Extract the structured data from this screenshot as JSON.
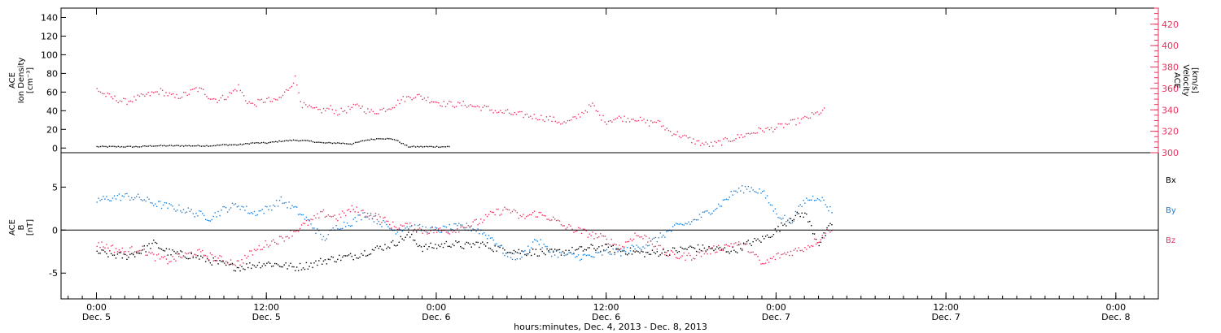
{
  "colors": {
    "black": "#000000",
    "pink": "#e8335f",
    "blue": "#1b7fd6"
  },
  "chart_data": [
    {
      "type": "scatter",
      "panel": "top",
      "ylabel_left": [
        "ACE",
        "Ion Density",
        "[cm⁻³]"
      ],
      "ylabel_right": [
        "ACE",
        "Velocity",
        "[km/s]"
      ],
      "ylim_left": [
        -5,
        150
      ],
      "yticks_left": [
        0,
        20,
        40,
        60,
        80,
        100,
        120,
        140
      ],
      "ylim_right": [
        300,
        435
      ],
      "yticks_right": [
        300,
        320,
        340,
        360,
        380,
        400,
        420
      ],
      "series": [
        {
          "color": "black",
          "axis": "left",
          "t": [
            0,
            4,
            8,
            12,
            16,
            20,
            24,
            28,
            32,
            36,
            40,
            44,
            48,
            52,
            56,
            60,
            64,
            68,
            72,
            76,
            80,
            84,
            88,
            92,
            96,
            100
          ],
          "v": [
            2,
            2,
            2,
            2,
            3,
            3,
            3,
            3,
            3,
            4,
            4,
            6,
            6,
            8,
            9,
            8,
            6,
            6,
            5,
            9,
            11,
            10,
            2,
            2,
            2,
            2
          ]
        },
        {
          "color": "pink",
          "axis": "right",
          "t": [
            0,
            2,
            4,
            6,
            8,
            10,
            12,
            14,
            16,
            18,
            20,
            22,
            24,
            26,
            28,
            30,
            32,
            34,
            36,
            38,
            40,
            42,
            44,
            46,
            48,
            50,
            52,
            54,
            56,
            58,
            60,
            62,
            64,
            66,
            68,
            70,
            72,
            74,
            76,
            78,
            80,
            82,
            84,
            86,
            88,
            90,
            92,
            94,
            96,
            98,
            100,
            102,
            104,
            106,
            108,
            110,
            112,
            114,
            116,
            118,
            120,
            122,
            124,
            126,
            128,
            130,
            132,
            134,
            136,
            138,
            140,
            142,
            144,
            146,
            148,
            150,
            152,
            154,
            156,
            158,
            160,
            162,
            164,
            166,
            168,
            170,
            172,
            174,
            176,
            178,
            180,
            182,
            184,
            186,
            188,
            190,
            192,
            194,
            196,
            198,
            200,
            202,
            204,
            206
          ],
          "v": [
            360,
            355,
            352,
            350,
            348,
            350,
            352,
            354,
            356,
            358,
            355,
            352,
            354,
            356,
            360,
            358,
            352,
            350,
            352,
            356,
            362,
            350,
            345,
            348,
            350,
            348,
            352,
            360,
            370,
            345,
            342,
            340,
            340,
            342,
            338,
            340,
            342,
            345,
            340,
            338,
            340,
            342,
            345,
            350,
            352,
            354,
            352,
            350,
            348,
            346,
            346,
            345,
            346,
            344,
            343,
            342,
            340,
            338,
            338,
            336,
            336,
            335,
            334,
            333,
            332,
            330,
            328,
            330,
            335,
            340,
            345,
            335,
            330,
            332,
            333,
            332,
            333,
            330,
            328,
            330,
            325,
            320,
            318,
            315,
            312,
            310,
            308,
            308,
            310,
            312,
            314,
            316,
            318,
            320,
            322,
            322,
            324,
            326,
            328,
            330,
            332,
            335,
            338,
            340
          ]
        }
      ]
    },
    {
      "type": "scatter",
      "panel": "bottom",
      "ylabel_left": [
        "ACE",
        "B",
        "[nT]"
      ],
      "ylim": [
        -8,
        9
      ],
      "yticks": [
        -5,
        0,
        5
      ],
      "zero_line": true,
      "legend": [
        "Bx",
        "By",
        "Bz"
      ],
      "series": [
        {
          "name": "Bx",
          "color": "black",
          "t": [
            0,
            4,
            8,
            12,
            16,
            20,
            24,
            28,
            32,
            36,
            40,
            44,
            48,
            52,
            56,
            60,
            64,
            68,
            72,
            76,
            80,
            84,
            88,
            92,
            96,
            100,
            104,
            108,
            112,
            116,
            120,
            124,
            128,
            132,
            136,
            140,
            144,
            148,
            152,
            156,
            160,
            164,
            168,
            172,
            176,
            180,
            184,
            188,
            192,
            196,
            200,
            204,
            208
          ],
          "v": [
            -2.5,
            -2.8,
            -3.0,
            -2.5,
            -1.5,
            -2.5,
            -2.8,
            -3.0,
            -3.5,
            -4.0,
            -4.3,
            -4.0,
            -3.8,
            -4.0,
            -4.3,
            -4.0,
            -3.5,
            -3.2,
            -3.0,
            -2.5,
            -2.0,
            -1.5,
            -0.5,
            -2.0,
            -1.8,
            -1.5,
            -1.8,
            -1.5,
            -2.0,
            -2.2,
            -2.5,
            -2.5,
            -2.6,
            -2.4,
            -2.3,
            -2.0,
            -2.0,
            -2.3,
            -2.5,
            -2.7,
            -2.5,
            -2.3,
            -2.0,
            -2.1,
            -2.2,
            -2.3,
            -1.5,
            -1.0,
            0.0,
            1.5,
            2.0,
            -1.5,
            1.0
          ]
        },
        {
          "name": "By",
          "color": "blue",
          "t": [
            0,
            4,
            8,
            12,
            16,
            20,
            24,
            28,
            32,
            36,
            40,
            44,
            48,
            52,
            56,
            60,
            64,
            68,
            72,
            76,
            80,
            84,
            88,
            92,
            96,
            100,
            104,
            108,
            112,
            116,
            120,
            124,
            128,
            132,
            136,
            140,
            144,
            148,
            152,
            156,
            160,
            164,
            168,
            172,
            176,
            180,
            184,
            188,
            192,
            196,
            200,
            204,
            208
          ],
          "v": [
            3.5,
            3.8,
            4.0,
            3.8,
            3.2,
            2.8,
            2.5,
            2.0,
            1.5,
            2.5,
            3.0,
            2.0,
            2.5,
            3.5,
            2.5,
            1.0,
            -1.0,
            0.5,
            1.0,
            2.0,
            1.0,
            0.0,
            0.5,
            0.2,
            0.0,
            0.3,
            0.5,
            0.0,
            -1.0,
            -3.0,
            -3.0,
            -1.0,
            -2.5,
            -2.8,
            -3.0,
            -3.0,
            -2.5,
            -2.5,
            -2.0,
            -1.5,
            -0.5,
            0.5,
            1.0,
            2.0,
            3.0,
            4.5,
            5.0,
            4.5,
            2.0,
            1.0,
            3.5,
            4.0,
            2.0
          ]
        },
        {
          "name": "Bz",
          "color": "pink",
          "t": [
            0,
            4,
            8,
            12,
            16,
            20,
            24,
            28,
            32,
            36,
            40,
            44,
            48,
            52,
            56,
            60,
            64,
            68,
            72,
            76,
            80,
            84,
            88,
            92,
            96,
            100,
            104,
            108,
            112,
            116,
            120,
            124,
            128,
            132,
            136,
            140,
            144,
            148,
            152,
            156,
            160,
            164,
            168,
            172,
            176,
            180,
            184,
            188,
            192,
            196,
            200,
            204,
            208
          ],
          "v": [
            -1.5,
            -2.0,
            -2.5,
            -2.0,
            -3.0,
            -3.5,
            -3.0,
            -2.5,
            -3.0,
            -3.5,
            -3.8,
            -2.5,
            -1.5,
            -1.0,
            0.0,
            1.0,
            2.0,
            1.5,
            2.5,
            2.0,
            1.5,
            0.5,
            0.5,
            0.0,
            0.0,
            0.0,
            0.5,
            1.0,
            2.0,
            2.5,
            1.5,
            2.0,
            1.5,
            0.5,
            0.0,
            -0.5,
            -1.0,
            -2.0,
            -0.5,
            -1.0,
            -2.5,
            -3.0,
            -3.0,
            -2.5,
            -2.0,
            -1.5,
            -2.0,
            -4.0,
            -3.0,
            -2.5,
            -2.0,
            -1.0,
            0.5
          ]
        }
      ]
    }
  ],
  "x_axis": {
    "ticks": [
      {
        "t": 0,
        "time": "0:00",
        "day": "Dec. 5"
      },
      {
        "t": 48,
        "time": "12:00",
        "day": "Dec. 5"
      },
      {
        "t": 96,
        "time": "0:00",
        "day": "Dec. 6"
      },
      {
        "t": 144,
        "time": "12:00",
        "day": "Dec. 6"
      },
      {
        "t": 192,
        "time": "0:00",
        "day": "Dec. 7"
      },
      {
        "t": 240,
        "time": "12:00",
        "day": "Dec. 7"
      },
      {
        "t": 288,
        "time": "0:00",
        "day": "Dec. 8"
      }
    ],
    "label": "hours:minutes, Dec.  4, 2013 - Dec.  8, 2013"
  }
}
